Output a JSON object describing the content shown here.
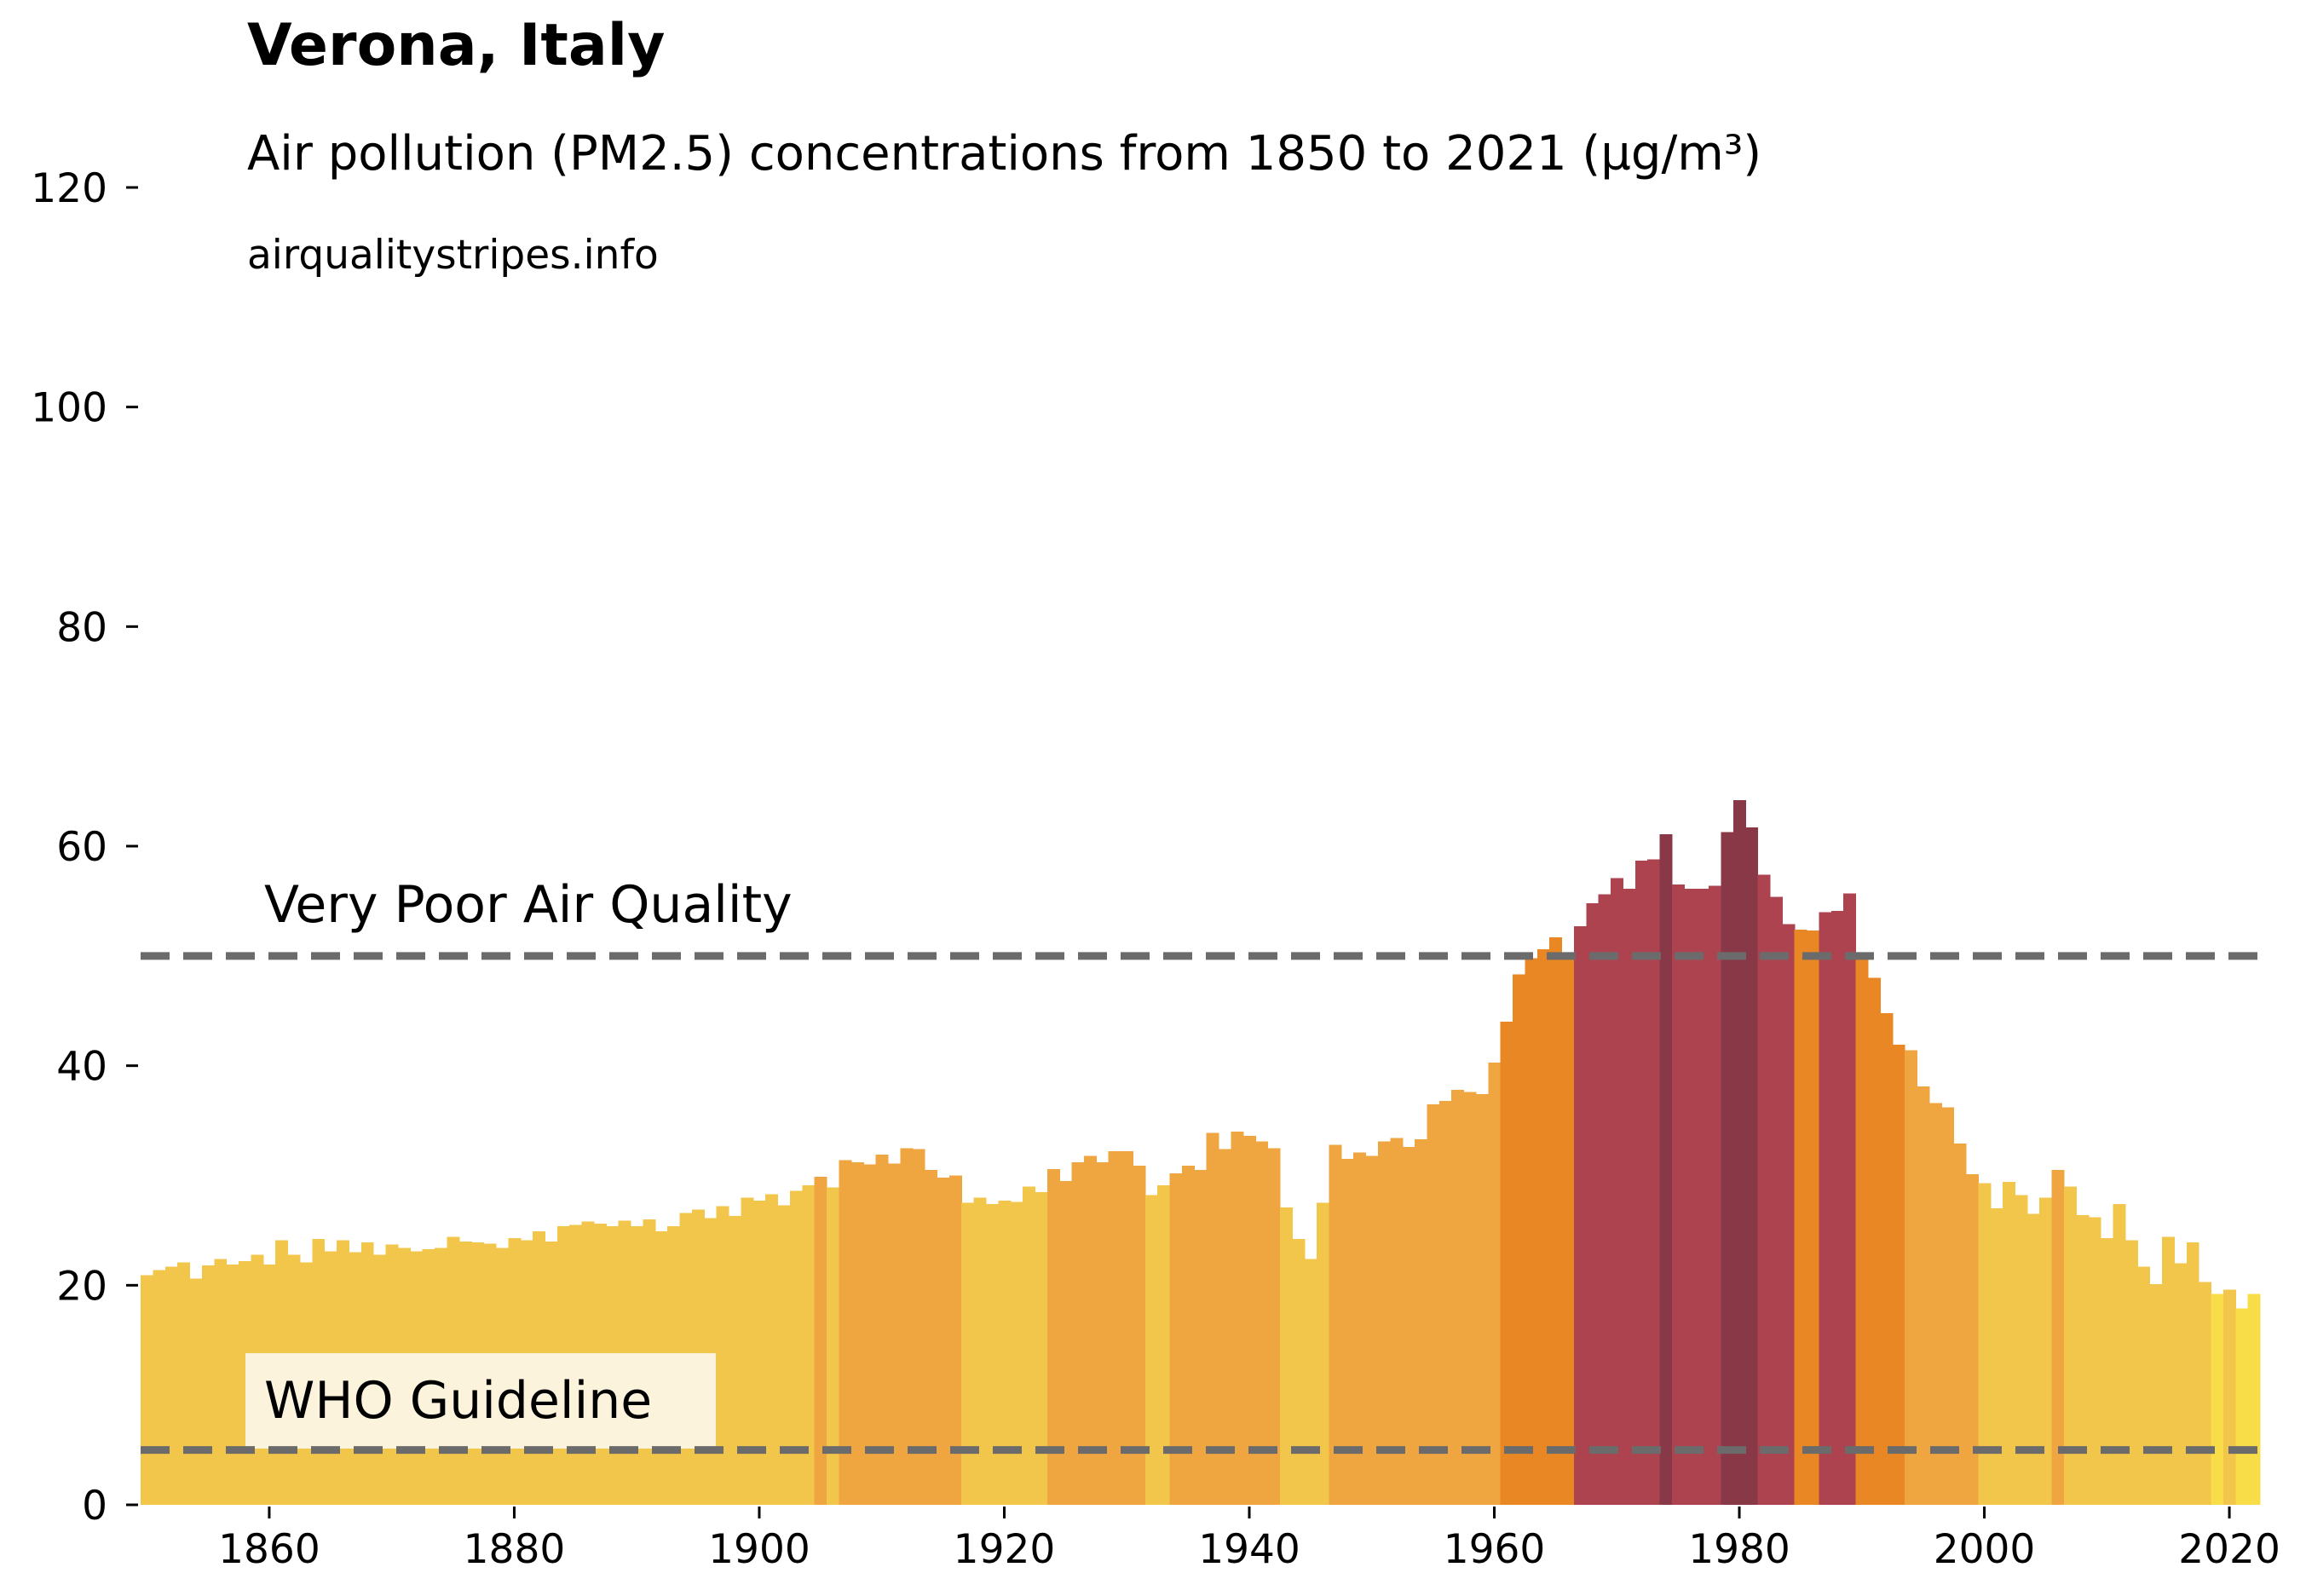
{
  "header": {
    "title": "Verona, Italy",
    "subtitle": "Air pollution (PM2.5) concentrations from 1850 to 2021 (µg/m³)",
    "source": "airqualitystripes.info"
  },
  "chart_data": {
    "type": "bar",
    "title": "Verona, Italy",
    "subtitle": "Air pollution (PM2.5) concentrations from 1850 to 2021 (µg/m³)",
    "xlabel": "",
    "ylabel": "",
    "xlim": [
      1849.5,
      2022.5
    ],
    "ylim": [
      0,
      120
    ],
    "x_ticks": [
      1860,
      1880,
      1900,
      1920,
      1940,
      1960,
      1980,
      2000,
      2020
    ],
    "y_ticks": [
      0,
      20,
      40,
      60,
      80,
      100,
      120
    ],
    "grid": false,
    "start_year": 1850,
    "end_year": 2021,
    "values": [
      20.9,
      21.4,
      21.7,
      22.1,
      20.6,
      21.8,
      22.4,
      21.9,
      22.2,
      22.8,
      21.9,
      24.1,
      22.8,
      22.1,
      24.2,
      23.1,
      24.1,
      23.0,
      23.9,
      22.8,
      23.7,
      23.4,
      23.1,
      23.3,
      23.4,
      24.4,
      24.0,
      23.9,
      23.8,
      23.4,
      24.3,
      24.1,
      24.9,
      24.0,
      25.4,
      25.5,
      25.8,
      25.6,
      25.4,
      25.9,
      25.4,
      26.0,
      24.9,
      25.4,
      26.6,
      26.9,
      26.1,
      27.2,
      26.3,
      28.0,
      27.7,
      28.3,
      27.3,
      28.6,
      29.1,
      29.9,
      28.9,
      31.4,
      31.2,
      31.0,
      31.9,
      31.1,
      32.5,
      32.4,
      30.5,
      29.8,
      30.0,
      27.5,
      28.0,
      27.4,
      27.7,
      27.6,
      29.0,
      28.5,
      30.6,
      29.5,
      31.2,
      31.8,
      31.2,
      32.2,
      32.2,
      30.9,
      28.2,
      29.1,
      30.2,
      30.9,
      30.5,
      33.9,
      32.4,
      34.0,
      33.6,
      33.1,
      32.5,
      27.1,
      24.2,
      22.4,
      27.5,
      32.8,
      31.5,
      32.1,
      31.8,
      33.1,
      33.4,
      32.6,
      33.3,
      36.5,
      36.8,
      37.8,
      37.6,
      37.4,
      40.3,
      44.0,
      48.3,
      49.8,
      50.6,
      51.7,
      49.9,
      52.7,
      54.8,
      55.6,
      57.1,
      56.1,
      58.7,
      58.8,
      61.1,
      56.5,
      56.1,
      56.1,
      56.4,
      61.3,
      64.2,
      61.7,
      57.4,
      55.4,
      52.9,
      52.4,
      52.3,
      54.0,
      54.1,
      55.7,
      50.1,
      48.0,
      44.8,
      41.9,
      41.4,
      38.1,
      36.6,
      36.2,
      32.9,
      30.1,
      29.3,
      27.0,
      29.4,
      28.2,
      26.5,
      28.0,
      30.5,
      29.0,
      26.4,
      26.2,
      24.3,
      27.4,
      24.1,
      21.7,
      20.1,
      24.4,
      22.0,
      23.9,
      20.3,
      19.2,
      19.6,
      17.9,
      19.2
    ],
    "color_scale": [
      {
        "min": 0,
        "color": "#f8dd48"
      },
      {
        "min": 19.5,
        "color": "#f2c54b"
      },
      {
        "min": 29.5,
        "color": "#f0a640"
      },
      {
        "min": 41.5,
        "color": "#e88724"
      },
      {
        "min": 52.5,
        "color": "#ae4350"
      },
      {
        "min": 61.0,
        "color": "#883846"
      }
    ],
    "reference_lines": [
      {
        "value": 50,
        "label": "Very Poor Air Quality",
        "color": "#6b6b6b",
        "style": "dashed"
      },
      {
        "value": 5,
        "label": "WHO Guideline",
        "color": "#6b6b6b",
        "style": "dashed",
        "label_background": "#fcf3dd"
      }
    ],
    "legend": "none"
  }
}
